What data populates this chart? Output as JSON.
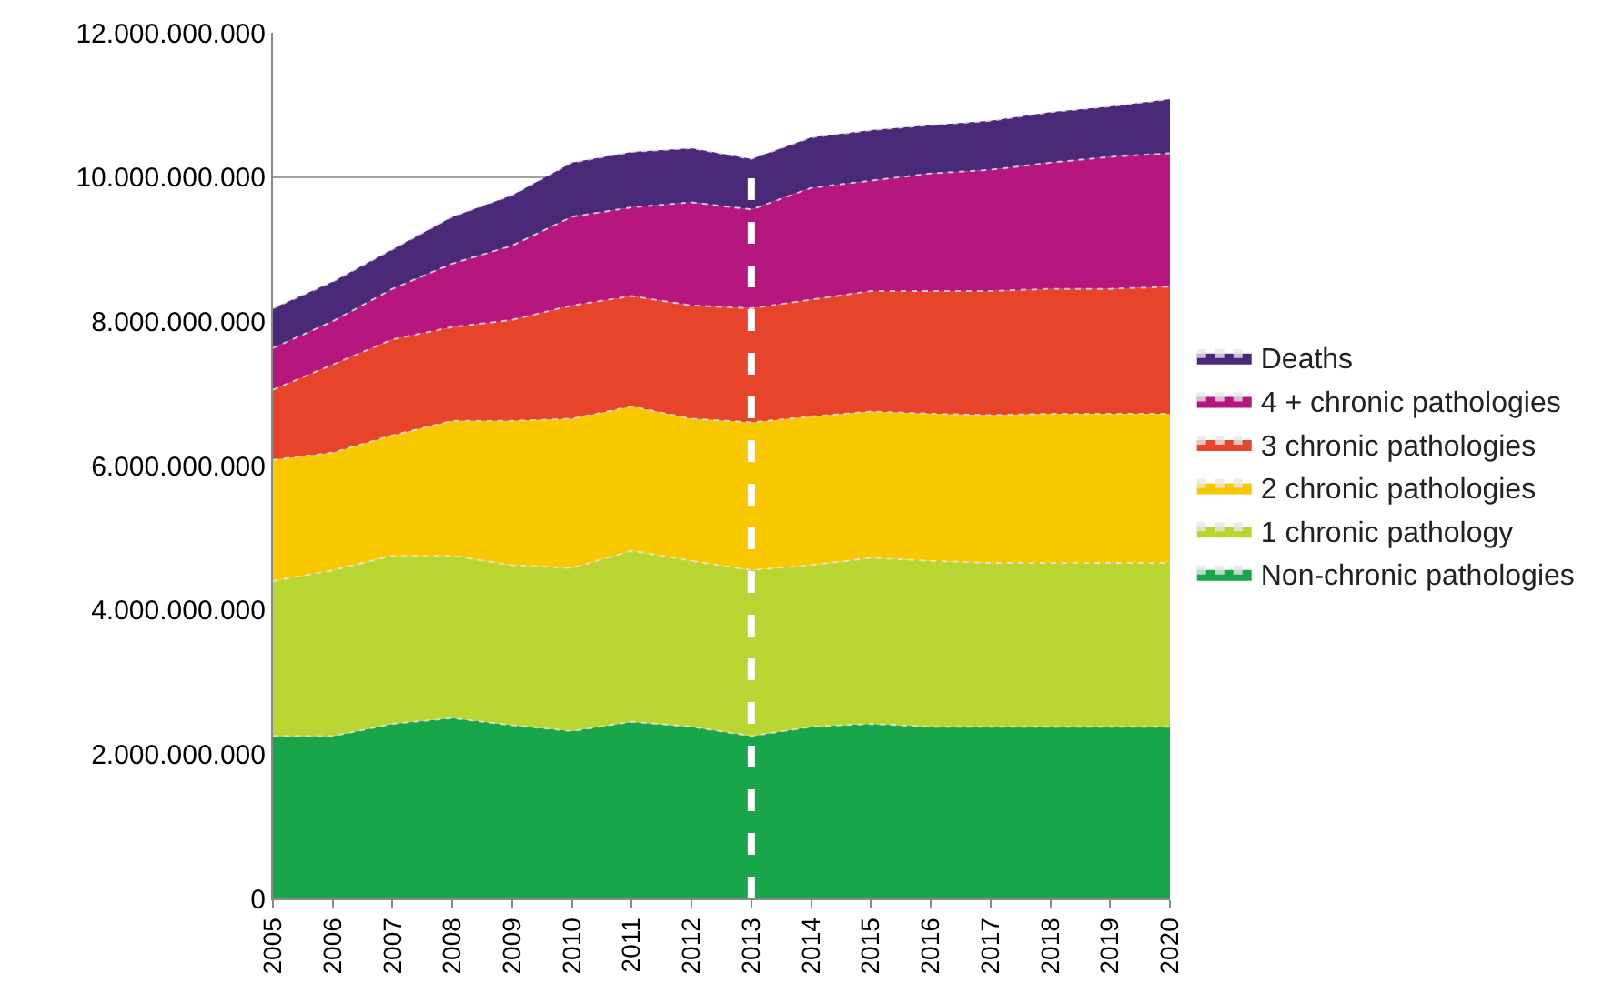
{
  "chart_data": {
    "type": "area",
    "stacked": true,
    "x": [
      2005,
      2006,
      2007,
      2008,
      2009,
      2010,
      2011,
      2012,
      2013,
      2014,
      2015,
      2016,
      2017,
      2018,
      2019,
      2020
    ],
    "series": [
      {
        "name": "Non-chronic pathologies",
        "color": "#19a64a",
        "values": [
          2250000000,
          2250000000,
          2420000000,
          2500000000,
          2400000000,
          2320000000,
          2450000000,
          2380000000,
          2250000000,
          2380000000,
          2420000000,
          2380000000,
          2380000000,
          2380000000,
          2380000000,
          2380000000
        ]
      },
      {
        "name": "1 chronic pathology",
        "color": "#b9d531",
        "values": [
          2150000000,
          2300000000,
          2330000000,
          2250000000,
          2220000000,
          2260000000,
          2370000000,
          2300000000,
          2300000000,
          2240000000,
          2300000000,
          2300000000,
          2270000000,
          2270000000,
          2270000000,
          2270000000
        ]
      },
      {
        "name": "2 chronic pathologies",
        "color": "#f7c800",
        "values": [
          1680000000,
          1630000000,
          1670000000,
          1870000000,
          2000000000,
          2070000000,
          2000000000,
          1970000000,
          2050000000,
          2060000000,
          2030000000,
          2040000000,
          2050000000,
          2070000000,
          2070000000,
          2070000000
        ]
      },
      {
        "name": "3 chronic pathologies",
        "color": "#e6452b",
        "values": [
          970000000,
          1220000000,
          1330000000,
          1300000000,
          1400000000,
          1570000000,
          1530000000,
          1570000000,
          1580000000,
          1620000000,
          1670000000,
          1700000000,
          1720000000,
          1730000000,
          1730000000,
          1760000000
        ]
      },
      {
        "name": "4 + chronic pathologies",
        "color": "#b5177e",
        "values": [
          580000000,
          600000000,
          700000000,
          880000000,
          1030000000,
          1230000000,
          1230000000,
          1430000000,
          1370000000,
          1550000000,
          1530000000,
          1630000000,
          1680000000,
          1750000000,
          1830000000,
          1850000000
        ]
      },
      {
        "name": "Deaths",
        "color": "#4a2a78",
        "values": [
          550000000,
          550000000,
          550000000,
          650000000,
          700000000,
          750000000,
          770000000,
          750000000,
          700000000,
          700000000,
          700000000,
          670000000,
          680000000,
          700000000,
          700000000,
          750000000
        ]
      }
    ],
    "xlim": [
      2005,
      2020
    ],
    "xticks": [
      2005,
      2006,
      2007,
      2008,
      2009,
      2010,
      2011,
      2012,
      2013,
      2014,
      2015,
      2016,
      2017,
      2018,
      2019,
      2020
    ],
    "ylim": [
      0,
      12000000000
    ],
    "yticks": [
      {
        "value": 0,
        "label": "0"
      },
      {
        "value": 2000000000,
        "label": "2.000.000.000"
      },
      {
        "value": 4000000000,
        "label": "4.000.000.000"
      },
      {
        "value": 6000000000,
        "label": "6.000.000.000"
      },
      {
        "value": 8000000000,
        "label": "8.000.000.000"
      },
      {
        "value": 10000000000,
        "label": "10.000.000.000"
      },
      {
        "value": 12000000000,
        "label": "12.000.000.000"
      }
    ],
    "grid": "y",
    "legend": "right",
    "line_style": "dotted",
    "ref_lines": [
      {
        "axis": "x",
        "value": 2013,
        "color": "#ffffff",
        "line_style": "dashed"
      }
    ]
  }
}
